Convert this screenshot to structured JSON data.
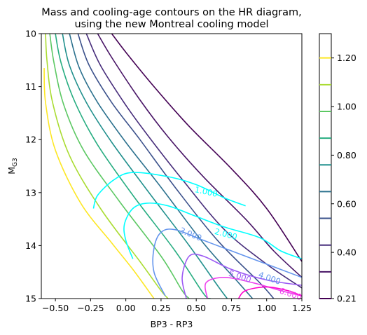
{
  "chart_data": {
    "type": "contour",
    "title_line1": "Mass and cooling-age contours on the HR diagram,",
    "title_line2": "using the new Montreal cooling model",
    "xlabel": "BP3 - RP3",
    "ylabel_main": "M",
    "ylabel_sub": "G3",
    "xlim": [
      -0.6,
      1.25
    ],
    "ylim": [
      15,
      10
    ],
    "y_inverted": true,
    "x_ticks": [
      -0.5,
      -0.25,
      0.0,
      0.25,
      0.5,
      0.75,
      1.0,
      1.25
    ],
    "x_tick_labels": [
      "−0.50",
      "−0.25",
      "0.00",
      "0.25",
      "0.50",
      "0.75",
      "1.00",
      "1.25"
    ],
    "y_ticks": [
      10,
      11,
      12,
      13,
      14,
      15
    ],
    "y_tick_labels": [
      "10",
      "11",
      "12",
      "13",
      "14",
      "15"
    ],
    "colorbar": {
      "label_values": [
        0.21,
        0.4,
        0.6,
        0.8,
        1.0,
        1.2
      ],
      "tick_labels": [
        "0.21",
        "0.40",
        "0.60",
        "0.80",
        "1.00",
        "1.20"
      ],
      "level_colors": [
        "#440154",
        "#471365",
        "#472d7b",
        "#3b518b",
        "#2c718e",
        "#21908d",
        "#27ad81",
        "#5cc863",
        "#aadc32",
        "#fde725"
      ]
    },
    "mass_contours": [
      {
        "color": "#440154",
        "points": [
          [
            -0.1,
            10.0
          ],
          [
            0.0,
            10.35
          ],
          [
            0.2,
            11.0
          ],
          [
            0.45,
            11.75
          ],
          [
            0.75,
            12.55
          ],
          [
            1.0,
            13.3
          ],
          [
            1.25,
            14.3
          ]
        ]
      },
      {
        "color": "#471365",
        "points": [
          [
            -0.2,
            10.0
          ],
          [
            -0.1,
            10.45
          ],
          [
            0.1,
            11.25
          ],
          [
            0.3,
            11.95
          ],
          [
            0.55,
            12.7
          ],
          [
            0.85,
            13.5
          ],
          [
            1.05,
            14.1
          ],
          [
            1.25,
            14.6
          ]
        ]
      },
      {
        "color": "#472d7b",
        "points": [
          [
            -0.28,
            10.0
          ],
          [
            -0.18,
            10.6
          ],
          [
            0.0,
            11.35
          ],
          [
            0.15,
            11.9
          ],
          [
            0.4,
            12.75
          ],
          [
            0.7,
            13.7
          ],
          [
            1.0,
            14.35
          ],
          [
            1.25,
            14.8
          ]
        ]
      },
      {
        "color": "#3b518b",
        "points": [
          [
            -0.34,
            10.0
          ],
          [
            -0.26,
            10.6
          ],
          [
            -0.1,
            11.3
          ],
          [
            0.1,
            12.0
          ],
          [
            0.35,
            12.9
          ],
          [
            0.65,
            13.9
          ],
          [
            0.95,
            14.7
          ],
          [
            1.05,
            15.0
          ]
        ]
      },
      {
        "color": "#2c718e",
        "points": [
          [
            -0.4,
            10.0
          ],
          [
            -0.33,
            10.65
          ],
          [
            -0.2,
            11.3
          ],
          [
            0.0,
            12.05
          ],
          [
            0.25,
            12.9
          ],
          [
            0.55,
            13.95
          ],
          [
            0.8,
            14.7
          ],
          [
            0.9,
            15.0
          ]
        ]
      },
      {
        "color": "#21908d",
        "points": [
          [
            -0.45,
            10.0
          ],
          [
            -0.4,
            10.6
          ],
          [
            -0.28,
            11.3
          ],
          [
            -0.1,
            12.05
          ],
          [
            0.15,
            12.95
          ],
          [
            0.45,
            14.0
          ],
          [
            0.65,
            14.75
          ],
          [
            0.72,
            15.0
          ]
        ]
      },
      {
        "color": "#27ad81",
        "points": [
          [
            -0.5,
            10.0
          ],
          [
            -0.46,
            10.55
          ],
          [
            -0.36,
            11.3
          ],
          [
            -0.2,
            12.1
          ],
          [
            0.05,
            13.05
          ],
          [
            0.35,
            14.1
          ],
          [
            0.55,
            14.9
          ],
          [
            0.6,
            15.0
          ]
        ]
      },
      {
        "color": "#5cc863",
        "points": [
          [
            -0.54,
            10.0
          ],
          [
            -0.51,
            10.55
          ],
          [
            -0.44,
            11.35
          ],
          [
            -0.3,
            12.2
          ],
          [
            -0.05,
            13.15
          ],
          [
            0.25,
            14.2
          ],
          [
            0.4,
            14.85
          ],
          [
            0.45,
            15.0
          ]
        ]
      },
      {
        "color": "#aadc32",
        "points": [
          [
            -0.57,
            10.0
          ],
          [
            -0.56,
            10.5
          ],
          [
            -0.52,
            11.3
          ],
          [
            -0.4,
            12.3
          ],
          [
            -0.18,
            13.3
          ],
          [
            0.1,
            14.3
          ],
          [
            0.25,
            14.85
          ],
          [
            0.3,
            15.0
          ]
        ]
      },
      {
        "color": "#fde725",
        "points": [
          [
            -0.58,
            10.65
          ],
          [
            -0.57,
            11.3
          ],
          [
            -0.5,
            12.2
          ],
          [
            -0.32,
            13.2
          ],
          [
            -0.1,
            13.95
          ],
          [
            0.05,
            14.45
          ],
          [
            0.2,
            15.0
          ]
        ]
      }
    ],
    "age_contours": [
      {
        "color": "#00ffff",
        "points": [
          [
            -0.23,
            13.3
          ],
          [
            -0.2,
            13.05
          ],
          [
            -0.08,
            12.75
          ],
          [
            0.05,
            12.62
          ],
          [
            0.3,
            12.7
          ],
          [
            0.5,
            12.85
          ],
          [
            0.7,
            13.1
          ],
          [
            0.85,
            13.25
          ]
        ]
      },
      {
        "color": "#00ffff",
        "points": [
          [
            0.05,
            14.25
          ],
          [
            0.0,
            13.9
          ],
          [
            -0.01,
            13.6
          ],
          [
            0.05,
            13.3
          ],
          [
            0.15,
            13.2
          ],
          [
            0.3,
            13.25
          ],
          [
            0.5,
            13.45
          ],
          [
            0.7,
            13.65
          ],
          [
            0.95,
            13.85
          ],
          [
            1.1,
            14.1
          ],
          [
            1.25,
            14.25
          ]
        ]
      },
      {
        "color": "#6495ed",
        "points": [
          [
            0.28,
            14.95
          ],
          [
            0.2,
            14.5
          ],
          [
            0.2,
            14.05
          ],
          [
            0.25,
            13.75
          ],
          [
            0.35,
            13.7
          ],
          [
            0.55,
            13.9
          ],
          [
            0.75,
            14.1
          ],
          [
            1.0,
            14.35
          ],
          [
            1.25,
            14.6
          ]
        ]
      },
      {
        "color": "#9b59f4",
        "points": [
          [
            0.43,
            15.0
          ],
          [
            0.4,
            14.6
          ],
          [
            0.45,
            14.2
          ],
          [
            0.55,
            14.2
          ],
          [
            0.75,
            14.45
          ],
          [
            1.0,
            14.65
          ],
          [
            1.25,
            14.75
          ]
        ]
      },
      {
        "color": "#ee44ee",
        "points": [
          [
            0.58,
            15.0
          ],
          [
            0.57,
            14.7
          ],
          [
            0.7,
            14.6
          ],
          [
            0.9,
            14.7
          ],
          [
            1.1,
            14.85
          ],
          [
            1.25,
            14.95
          ]
        ]
      },
      {
        "color": "#ff00cc",
        "points": [
          [
            0.8,
            15.0
          ],
          [
            0.85,
            14.85
          ],
          [
            1.0,
            14.78
          ],
          [
            1.15,
            14.85
          ],
          [
            1.25,
            14.95
          ]
        ]
      }
    ],
    "age_labels": [
      {
        "text": "1.000",
        "x": 0.57,
        "y": 12.99,
        "color": "#00ffff",
        "angle": 12
      },
      {
        "text": "2.000",
        "x": 0.71,
        "y": 13.79,
        "color": "#00ffff",
        "angle": 15
      },
      {
        "text": "3.000",
        "x": 0.46,
        "y": 13.79,
        "color": "#6495ed",
        "angle": 22
      },
      {
        "text": "4.000",
        "x": 1.02,
        "y": 14.62,
        "color": "#6495ed",
        "angle": 20
      },
      {
        "text": "5.000",
        "x": 0.81,
        "y": 14.59,
        "color": "#9b59f4",
        "angle": 18
      },
      {
        "text": "6.000",
        "x": 1.17,
        "y": 14.92,
        "color": "#ee44ee",
        "angle": 18
      }
    ]
  }
}
